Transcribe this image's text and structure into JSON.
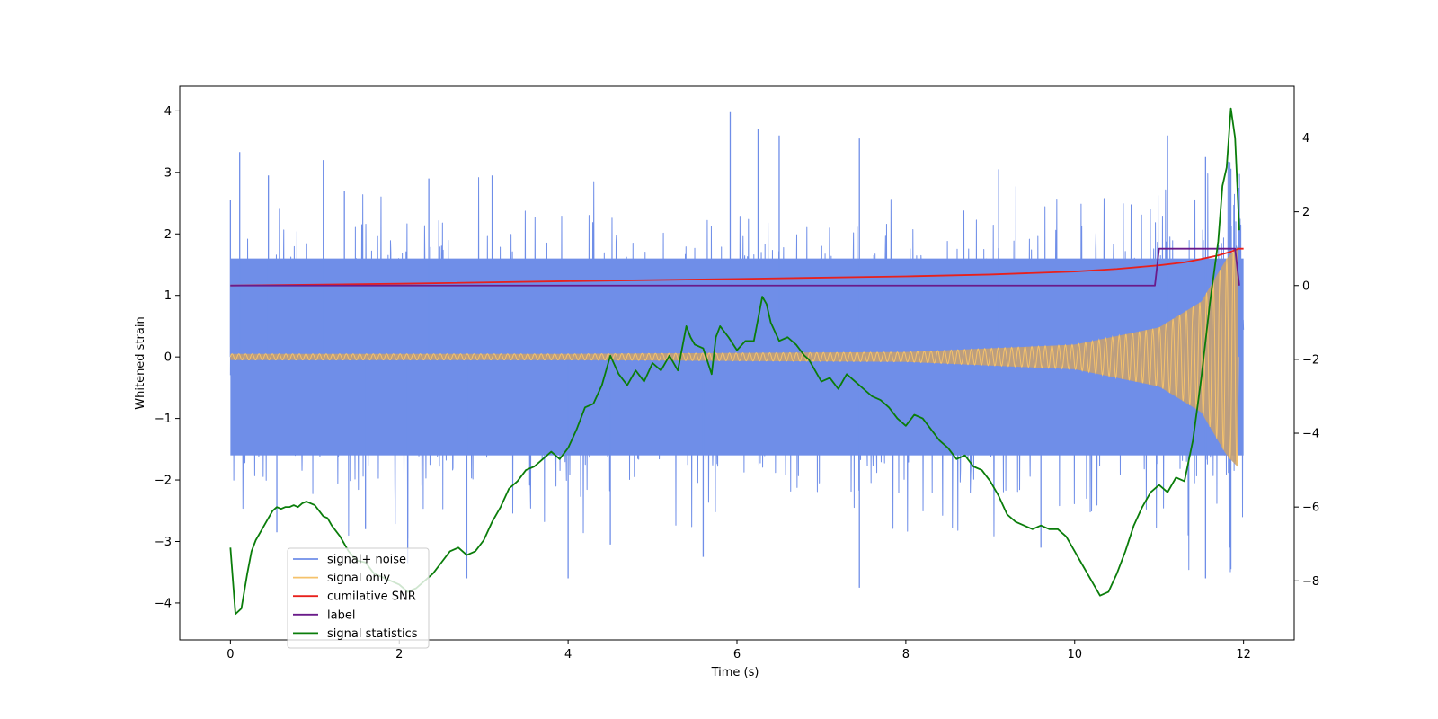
{
  "chart_data": {
    "type": "line",
    "title": "",
    "xlabel": "Time (s)",
    "ylabel": "Whitened strain",
    "xlim": [
      -0.6,
      12.6
    ],
    "ylim": [
      -4.6,
      4.4
    ],
    "y2lim": [
      -9.6,
      5.4
    ],
    "xticks": [
      0,
      2,
      4,
      6,
      8,
      10,
      12
    ],
    "xtick_labels": [
      "0",
      "2",
      "4",
      "6",
      "8",
      "10",
      "12"
    ],
    "yticks": [
      -4,
      -3,
      -2,
      -1,
      0,
      1,
      2,
      3,
      4
    ],
    "ytick_labels": [
      "−4",
      "−3",
      "−2",
      "−1",
      "0",
      "1",
      "2",
      "3",
      "4"
    ],
    "y2ticks": [
      -8,
      -6,
      -4,
      -2,
      0,
      2,
      4
    ],
    "y2tick_labels": [
      "−8",
      "−6",
      "−4",
      "−2",
      "0",
      "2",
      "4"
    ],
    "grid": false,
    "legend_placement": "lower-left",
    "series": [
      {
        "name": "signal+ noise",
        "axis": "left",
        "color": "#6f8ee8",
        "kind": "dense noisy band",
        "t_start": 0,
        "t_end": 12,
        "typical_band": [
          -1.6,
          1.6
        ],
        "peaks": [
          [
            0.0,
            2.55
          ],
          [
            0.11,
            3.33
          ],
          [
            0.45,
            2.95
          ],
          [
            1.1,
            3.2
          ],
          [
            1.35,
            2.7
          ],
          [
            2.35,
            2.9
          ],
          [
            3.1,
            2.95
          ],
          [
            5.92,
            3.98
          ],
          [
            6.25,
            3.7
          ],
          [
            6.5,
            3.6
          ],
          [
            7.45,
            3.55
          ],
          [
            9.1,
            3.05
          ],
          [
            11.1,
            3.6
          ],
          [
            11.55,
            3.25
          ],
          [
            11.85,
            3.06
          ]
        ],
        "troughs": [
          [
            0.55,
            -2.85
          ],
          [
            1.6,
            -2.8
          ],
          [
            2.1,
            -3.35
          ],
          [
            2.8,
            -3.6
          ],
          [
            4.0,
            -3.6
          ],
          [
            4.5,
            -3.05
          ],
          [
            5.6,
            -3.25
          ],
          [
            7.45,
            -3.75
          ],
          [
            9.6,
            -3.1
          ],
          [
            11.55,
            -3.6
          ],
          [
            11.85,
            -3.45
          ]
        ]
      },
      {
        "name": "signal only",
        "axis": "left",
        "color": "#f5c26b",
        "kind": "chirp",
        "t_start": 0,
        "t_end": 11.94,
        "t_merger": 11.94,
        "envelope": [
          [
            0,
            0.05
          ],
          [
            4,
            0.05
          ],
          [
            8,
            0.08
          ],
          [
            10,
            0.2
          ],
          [
            11,
            0.48
          ],
          [
            11.5,
            0.9
          ],
          [
            11.8,
            1.6
          ],
          [
            11.94,
            1.8
          ]
        ]
      },
      {
        "name": "cumilative SNR",
        "axis": "right",
        "color": "#e8201c",
        "x": [
          0,
          2,
          4,
          6,
          8,
          9,
          10,
          10.5,
          11,
          11.3,
          11.5,
          11.7,
          11.85,
          11.94,
          12.0
        ],
        "y": [
          0.0,
          0.05,
          0.12,
          0.18,
          0.25,
          0.3,
          0.38,
          0.45,
          0.55,
          0.63,
          0.72,
          0.82,
          0.92,
          1.0,
          1.0
        ]
      },
      {
        "name": "label",
        "axis": "right",
        "color": "#6a1b8a",
        "x": [
          0,
          10.95,
          11.0,
          11.9,
          11.95
        ],
        "y": [
          0,
          0,
          1,
          1,
          0
        ]
      },
      {
        "name": "signal statistics",
        "axis": "right",
        "color": "#0a7d0a",
        "x": [
          0.0,
          0.06,
          0.13,
          0.2,
          0.25,
          0.3,
          0.35,
          0.4,
          0.45,
          0.5,
          0.55,
          0.6,
          0.65,
          0.7,
          0.75,
          0.8,
          0.85,
          0.9,
          0.95,
          1.0,
          1.05,
          1.1,
          1.15,
          1.2,
          1.3,
          1.4,
          1.5,
          1.6,
          1.7,
          1.8,
          1.9,
          2.0,
          2.1,
          2.2,
          2.3,
          2.4,
          2.5,
          2.6,
          2.7,
          2.8,
          2.9,
          3.0,
          3.1,
          3.2,
          3.3,
          3.4,
          3.5,
          3.6,
          3.7,
          3.8,
          3.9,
          4.0,
          4.1,
          4.2,
          4.3,
          4.4,
          4.5,
          4.6,
          4.7,
          4.8,
          4.9,
          5.0,
          5.1,
          5.2,
          5.3,
          5.4,
          5.45,
          5.5,
          5.6,
          5.7,
          5.75,
          5.8,
          5.9,
          6.0,
          6.1,
          6.2,
          6.3,
          6.35,
          6.4,
          6.5,
          6.6,
          6.7,
          6.8,
          6.85,
          6.9,
          7.0,
          7.1,
          7.2,
          7.3,
          7.4,
          7.5,
          7.6,
          7.7,
          7.8,
          7.9,
          8.0,
          8.1,
          8.2,
          8.3,
          8.4,
          8.5,
          8.6,
          8.7,
          8.8,
          8.9,
          9.0,
          9.1,
          9.2,
          9.3,
          9.4,
          9.5,
          9.6,
          9.7,
          9.8,
          9.9,
          10.0,
          10.1,
          10.2,
          10.3,
          10.4,
          10.5,
          10.6,
          10.7,
          10.8,
          10.9,
          11.0,
          11.1,
          11.2,
          11.3,
          11.4,
          11.5,
          11.6,
          11.7,
          11.75,
          11.8,
          11.85,
          11.9,
          11.95
        ],
        "y": [
          -7.1,
          -8.9,
          -8.75,
          -7.8,
          -7.2,
          -6.9,
          -6.7,
          -6.5,
          -6.3,
          -6.1,
          -6.0,
          -6.05,
          -6.0,
          -6.0,
          -5.95,
          -6.0,
          -5.9,
          -5.85,
          -5.9,
          -5.95,
          -6.1,
          -6.25,
          -6.3,
          -6.5,
          -6.8,
          -7.2,
          -7.45,
          -7.5,
          -7.8,
          -7.9,
          -8.0,
          -8.1,
          -8.3,
          -8.2,
          -8.0,
          -7.8,
          -7.5,
          -7.2,
          -7.1,
          -7.3,
          -7.2,
          -6.9,
          -6.4,
          -6.0,
          -5.5,
          -5.3,
          -5.0,
          -4.9,
          -4.7,
          -4.5,
          -4.7,
          -4.4,
          -3.9,
          -3.3,
          -3.2,
          -2.7,
          -1.9,
          -2.4,
          -2.7,
          -2.3,
          -2.6,
          -2.1,
          -2.3,
          -1.9,
          -2.3,
          -1.1,
          -1.4,
          -1.6,
          -1.7,
          -2.4,
          -1.4,
          -1.1,
          -1.4,
          -1.75,
          -1.5,
          -1.5,
          -0.3,
          -0.5,
          -1.0,
          -1.5,
          -1.4,
          -1.6,
          -1.9,
          -2.0,
          -2.2,
          -2.6,
          -2.5,
          -2.8,
          -2.4,
          -2.6,
          -2.8,
          -3.0,
          -3.1,
          -3.3,
          -3.6,
          -3.8,
          -3.5,
          -3.6,
          -3.9,
          -4.2,
          -4.4,
          -4.7,
          -4.6,
          -4.9,
          -5.0,
          -5.3,
          -5.7,
          -6.2,
          -6.4,
          -6.5,
          -6.6,
          -6.5,
          -6.6,
          -6.6,
          -6.8,
          -7.2,
          -7.6,
          -8.0,
          -8.4,
          -8.3,
          -7.8,
          -7.2,
          -6.5,
          -6.0,
          -5.6,
          -5.4,
          -5.6,
          -5.2,
          -5.3,
          -4.2,
          -2.5,
          -0.5,
          1.2,
          2.7,
          3.2,
          4.8,
          4.0,
          1.5
        ]
      }
    ],
    "legend": [
      "signal+ noise",
      "signal only",
      "cumilative SNR",
      "label",
      "signal statistics"
    ]
  }
}
